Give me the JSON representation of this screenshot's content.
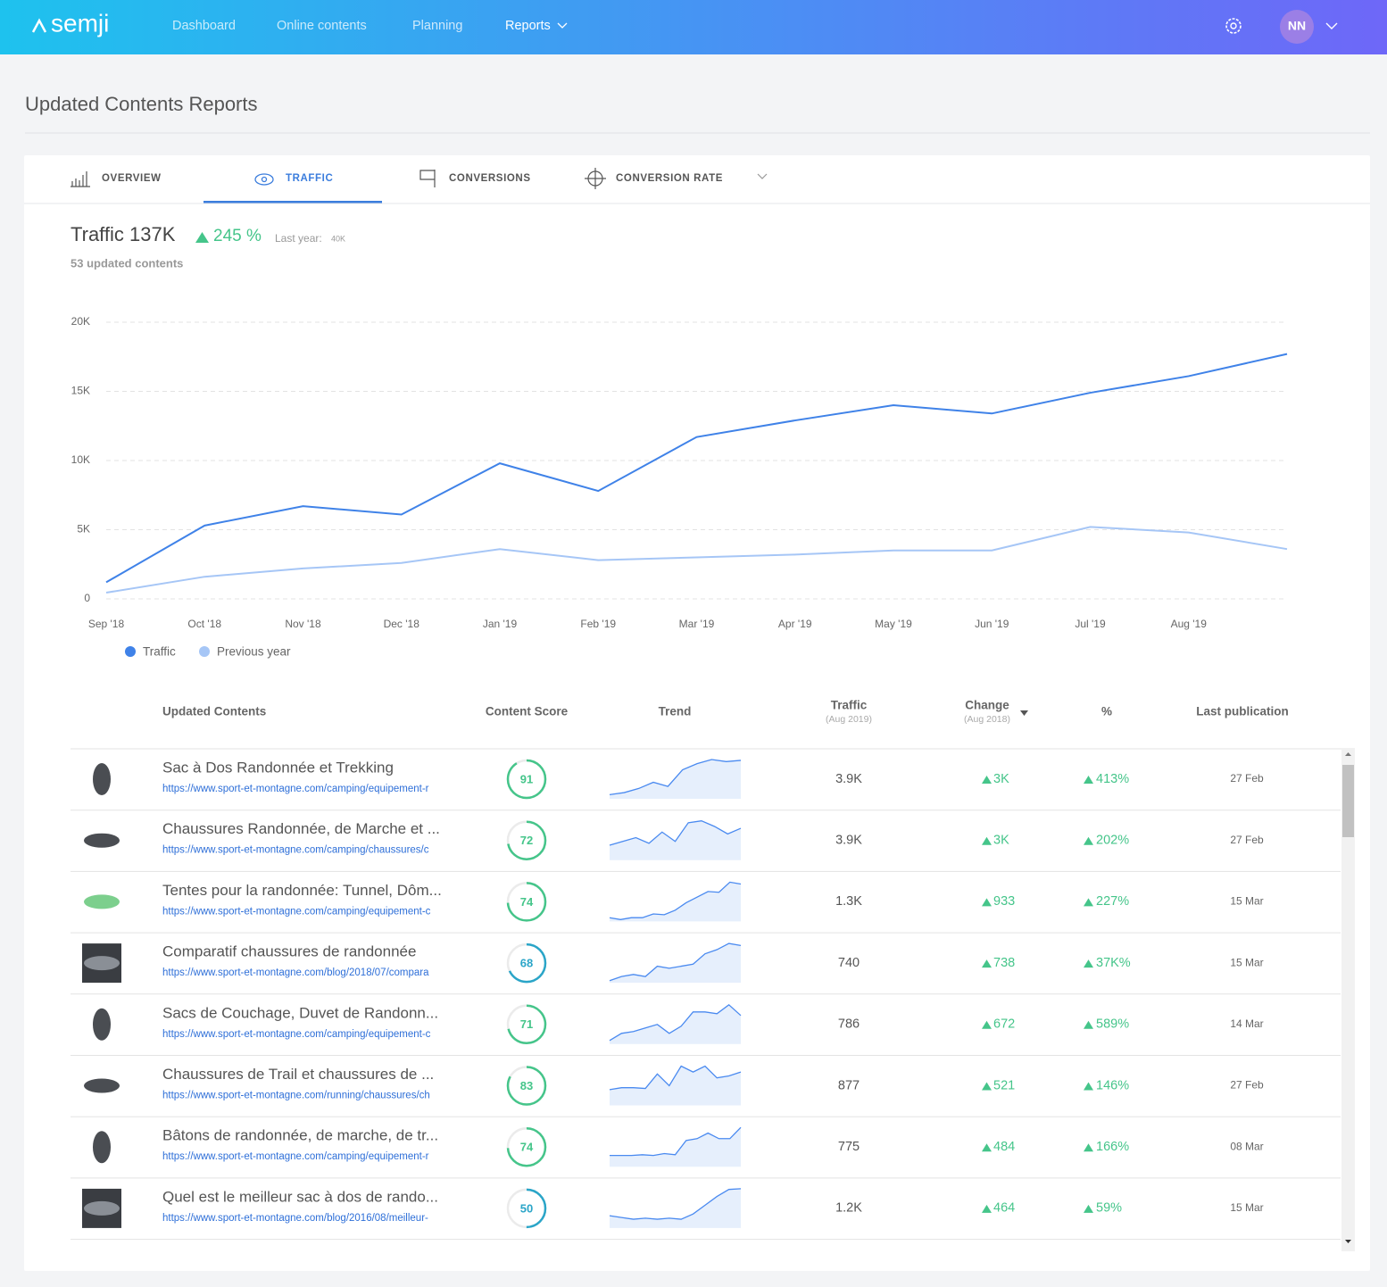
{
  "header": {
    "logo": "semji",
    "nav": [
      "Dashboard",
      "Online contents",
      "Planning",
      "Reports"
    ],
    "avatar": "NN"
  },
  "page_title": "Updated Contents Reports",
  "tabs": [
    "OVERVIEW",
    "TRAFFIC",
    "CONVERSIONS",
    "CONVERSION RATE"
  ],
  "summary": {
    "title": "Traffic 137K",
    "change": "245 %",
    "last_year_label": "Last year:",
    "last_year": "40K",
    "updated": "53 updated contents"
  },
  "chart_data": {
    "type": "line",
    "categories": [
      "Sep '18",
      "Oct '18",
      "Nov '18",
      "Dec '18",
      "Jan '19",
      "Feb '19",
      "Mar '19",
      "Apr '19",
      "May '19",
      "Jun '19",
      "Jul '19",
      "Aug '19",
      null
    ],
    "series": [
      {
        "name": "Traffic",
        "color": "#3f82e8",
        "values": [
          1200,
          5300,
          6700,
          6100,
          9800,
          7800,
          11700,
          12900,
          14000,
          13400,
          14900,
          16100,
          17700
        ]
      },
      {
        "name": "Previous year",
        "color": "#a6c6f6",
        "values": [
          450,
          1600,
          2200,
          2600,
          3600,
          2800,
          3000,
          3200,
          3500,
          3500,
          5200,
          4800,
          3600
        ]
      }
    ],
    "ylim": [
      0,
      20000
    ],
    "yticks": [
      0,
      {
        "value": 5000,
        "label": "5K"
      },
      {
        "value": 10000,
        "label": "10K"
      },
      {
        "value": 15000,
        "label": "15K"
      },
      {
        "value": 20000,
        "label": "20K"
      }
    ],
    "grid": true,
    "legend": "bottom-left"
  },
  "table": {
    "columns": [
      {
        "label": "Updated Contents"
      },
      {
        "label": "Content Score"
      },
      {
        "label": "Trend"
      },
      {
        "label": "Traffic",
        "sub": "(Aug 2019)"
      },
      {
        "label": "Change",
        "sub": "(Aug 2018)"
      },
      {
        "label": "%"
      },
      {
        "label": "Last publication"
      }
    ],
    "rows": [
      {
        "title": "Sac à Dos Randonnée et Trekking",
        "url": "https://www.sport-et-montagne.com/camping/equipement-r",
        "score": 91,
        "trend": [
          1,
          1.5,
          2.5,
          4,
          3,
          7,
          8.5,
          9.5,
          9,
          9.3
        ],
        "traffic": "3.9K",
        "change": "3K",
        "percent": "413%",
        "date": "27 Feb"
      },
      {
        "title": "Chaussures Randonnée, de Marche et ...",
        "url": "https://www.sport-et-montagne.com/camping/chaussures/c",
        "score": 72,
        "trend": [
          4,
          5,
          6,
          4.5,
          7.5,
          5,
          10,
          10.5,
          9,
          7,
          8.5
        ],
        "traffic": "3.9K",
        "change": "3K",
        "percent": "202%",
        "date": "27 Feb"
      },
      {
        "title": "Tentes pour la randonnée: Tunnel, Dôm...",
        "url": "https://www.sport-et-montagne.com/camping/equipement-c",
        "score": 74,
        "trend": [
          1,
          0.5,
          1,
          1,
          2,
          1.8,
          3,
          5,
          6.5,
          8,
          7.8,
          10.5,
          10
        ],
        "traffic": "1.3K",
        "change": "933",
        "percent": "227%",
        "date": "15 Mar"
      },
      {
        "title": "Comparatif chaussures de randonnée",
        "url": "https://www.sport-et-montagne.com/blog/2018/07/compara",
        "score": 68,
        "trend": [
          0.5,
          1.5,
          2,
          1.5,
          4,
          3.5,
          4,
          4.5,
          7,
          8,
          9.5,
          9
        ],
        "traffic": "740",
        "change": "738",
        "percent": "37K%",
        "date": "15 Mar"
      },
      {
        "title": "Sacs de Couchage, Duvet de Randonn...",
        "url": "https://www.sport-et-montagne.com/camping/equipement-c",
        "score": 71,
        "trend": [
          1,
          3,
          3.5,
          4.5,
          5.5,
          3,
          5,
          9,
          9,
          8.5,
          11,
          8
        ],
        "traffic": "786",
        "change": "672",
        "percent": "589%",
        "date": "14 Mar"
      },
      {
        "title": "Chaussures de Trail et chaussures de ...",
        "url": "https://www.sport-et-montagne.com/running/chaussures/ch",
        "score": 83,
        "trend": [
          4,
          4.5,
          4.5,
          4.3,
          8,
          5,
          10,
          8.5,
          10,
          7,
          7.5,
          8.5
        ],
        "traffic": "877",
        "change": "521",
        "percent": "146%",
        "date": "27 Feb"
      },
      {
        "title": "Bâtons de randonnée, de marche, de tr...",
        "url": "https://www.sport-et-montagne.com/camping/equipement-r",
        "score": 74,
        "trend": [
          3,
          3,
          3,
          3.2,
          3,
          3.5,
          3.2,
          7,
          7.5,
          9,
          7.5,
          7.5,
          10.5
        ],
        "traffic": "775",
        "change": "484",
        "percent": "166%",
        "date": "08 Mar"
      },
      {
        "title": "Quel est le meilleur sac à dos de rando...",
        "url": "https://www.sport-et-montagne.com/blog/2016/08/meilleur-",
        "score": 50,
        "trend": [
          3.5,
          3,
          2.5,
          2.8,
          2.5,
          2.8,
          2.5,
          4,
          6.5,
          9,
          11,
          11.2
        ],
        "traffic": "1.2K",
        "change": "464",
        "percent": "59%",
        "date": "15 Mar"
      }
    ]
  }
}
